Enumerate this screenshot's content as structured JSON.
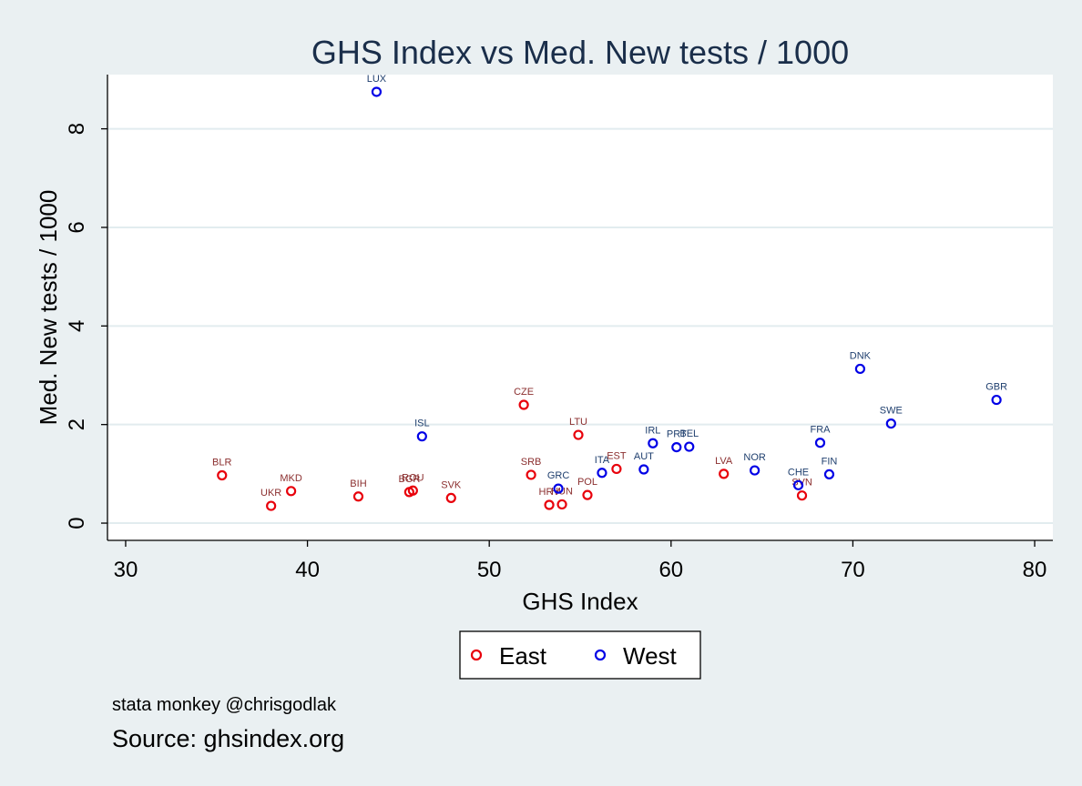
{
  "chart_data": {
    "type": "scatter",
    "title": "GHS Index vs Med. New tests / 1000",
    "xlabel": "GHS Index",
    "ylabel": "Med. New tests / 1000",
    "xlim": [
      29,
      81
    ],
    "ylim": [
      -0.35,
      9.1
    ],
    "xticks": [
      30,
      40,
      50,
      60,
      70,
      80
    ],
    "yticks": [
      0,
      2,
      4,
      6,
      8
    ],
    "grid": "horizontal",
    "legend_position": "bottom",
    "series": [
      {
        "name": "East",
        "color": "#e8000b",
        "label_color": "#8b2f2f",
        "points": [
          {
            "label": "BLR",
            "x": 35.3,
            "y": 0.97
          },
          {
            "label": "UKR",
            "x": 38.0,
            "y": 0.35
          },
          {
            "label": "MKD",
            "x": 39.1,
            "y": 0.65
          },
          {
            "label": "BIH",
            "x": 42.8,
            "y": 0.54
          },
          {
            "label": "BGR",
            "x": 45.6,
            "y": 0.63
          },
          {
            "label": "ROU",
            "x": 45.8,
            "y": 0.66
          },
          {
            "label": "SVK",
            "x": 47.9,
            "y": 0.51
          },
          {
            "label": "CZE",
            "x": 51.9,
            "y": 2.4
          },
          {
            "label": "SRB",
            "x": 52.3,
            "y": 0.98
          },
          {
            "label": "HRV",
            "x": 53.3,
            "y": 0.37
          },
          {
            "label": "HUN",
            "x": 54.0,
            "y": 0.38
          },
          {
            "label": "LTU",
            "x": 54.9,
            "y": 1.79
          },
          {
            "label": "POL",
            "x": 55.4,
            "y": 0.57
          },
          {
            "label": "EST",
            "x": 57.0,
            "y": 1.1
          },
          {
            "label": "LVA",
            "x": 62.9,
            "y": 1.0
          },
          {
            "label": "SVN",
            "x": 67.2,
            "y": 0.56
          }
        ]
      },
      {
        "name": "West",
        "color": "#0000e6",
        "label_color": "#1f3f6e",
        "points": [
          {
            "label": "LUX",
            "x": 43.8,
            "y": 8.75
          },
          {
            "label": "ISL",
            "x": 46.3,
            "y": 1.76
          },
          {
            "label": "GRC",
            "x": 53.8,
            "y": 0.7
          },
          {
            "label": "ITA",
            "x": 56.2,
            "y": 1.02
          },
          {
            "label": "AUT",
            "x": 58.5,
            "y": 1.09
          },
          {
            "label": "IRL",
            "x": 59.0,
            "y": 1.62
          },
          {
            "label": "PRT",
            "x": 60.3,
            "y": 1.54
          },
          {
            "label": "BEL",
            "x": 61.0,
            "y": 1.55
          },
          {
            "label": "NOR",
            "x": 64.6,
            "y": 1.07
          },
          {
            "label": "CHE",
            "x": 67.0,
            "y": 0.77
          },
          {
            "label": "FRA",
            "x": 68.2,
            "y": 1.63
          },
          {
            "label": "FIN",
            "x": 68.7,
            "y": 0.99
          },
          {
            "label": "DNK",
            "x": 70.4,
            "y": 3.13
          },
          {
            "label": "SWE",
            "x": 72.1,
            "y": 2.02
          },
          {
            "label": "GBR",
            "x": 77.9,
            "y": 2.5
          }
        ]
      }
    ]
  },
  "notes": {
    "credit": "stata monkey @chrisgodlak",
    "source": "Source: ghsindex.org"
  }
}
